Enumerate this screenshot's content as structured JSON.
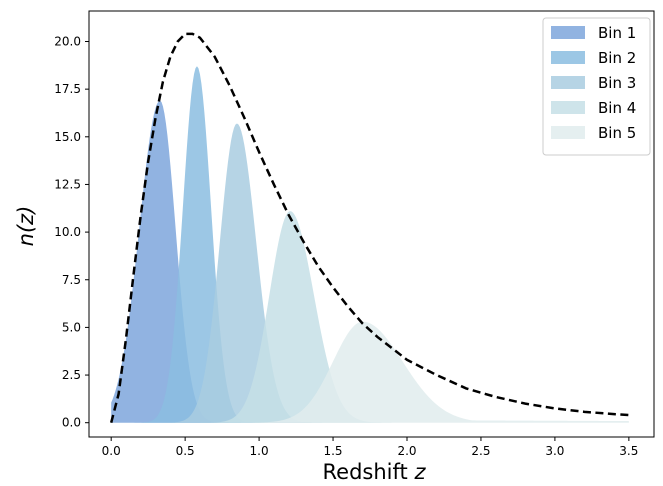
{
  "chart_data": {
    "type": "area",
    "xlabel": "Redshift",
    "xlabel_var": "z",
    "ylabel": "n(z)",
    "xlim": [
      -0.15,
      3.67
    ],
    "ylim": [
      -0.75,
      21.6
    ],
    "x_ticks": [
      0.0,
      0.5,
      1.0,
      1.5,
      2.0,
      2.5,
      3.0,
      3.5
    ],
    "x_tick_labels": [
      "0.0",
      "0.5",
      "1.0",
      "1.5",
      "2.0",
      "2.5",
      "3.0",
      "3.5"
    ],
    "y_ticks": [
      0.0,
      2.5,
      5.0,
      7.5,
      10.0,
      12.5,
      15.0,
      17.5,
      20.0
    ],
    "y_tick_labels": [
      "0.0",
      "2.5",
      "5.0",
      "7.5",
      "10.0",
      "12.5",
      "15.0",
      "17.5",
      "20.0"
    ],
    "grid": false,
    "legend_position": "top-right",
    "total_curve": {
      "style": "dashed",
      "color": "#000000",
      "points": [
        [
          0.0,
          0.0
        ],
        [
          0.05,
          1.5
        ],
        [
          0.1,
          4.4
        ],
        [
          0.15,
          7.7
        ],
        [
          0.2,
          10.9
        ],
        [
          0.25,
          13.7
        ],
        [
          0.3,
          16.0
        ],
        [
          0.35,
          17.9
        ],
        [
          0.4,
          19.2
        ],
        [
          0.45,
          20.0
        ],
        [
          0.5,
          20.4
        ],
        [
          0.55,
          20.4
        ],
        [
          0.6,
          20.2
        ],
        [
          0.7,
          19.2
        ],
        [
          0.8,
          17.7
        ],
        [
          0.9,
          16.0
        ],
        [
          1.0,
          14.2
        ],
        [
          1.1,
          12.5
        ],
        [
          1.2,
          10.9
        ],
        [
          1.3,
          9.5
        ],
        [
          1.4,
          8.2
        ],
        [
          1.5,
          7.1
        ],
        [
          1.6,
          6.1
        ],
        [
          1.7,
          5.2
        ],
        [
          1.8,
          4.5
        ],
        [
          1.9,
          3.9
        ],
        [
          2.0,
          3.3
        ],
        [
          2.2,
          2.5
        ],
        [
          2.4,
          1.8
        ],
        [
          2.6,
          1.35
        ],
        [
          2.8,
          1.0
        ],
        [
          3.0,
          0.75
        ],
        [
          3.2,
          0.57
        ],
        [
          3.4,
          0.45
        ],
        [
          3.5,
          0.4
        ]
      ]
    },
    "series": [
      {
        "name": "Bin 1",
        "color": "#7ea6dc",
        "peak_z": 0.33,
        "peak_n": 16.9,
        "sigma_left": 0.14,
        "sigma_right": 0.105
      },
      {
        "name": "Bin 2",
        "color": "#8bbde0",
        "peak_z": 0.58,
        "peak_n": 18.7,
        "sigma_left": 0.095,
        "sigma_right": 0.095
      },
      {
        "name": "Bin 3",
        "color": "#a9cce0",
        "peak_z": 0.85,
        "peak_n": 15.7,
        "sigma_left": 0.115,
        "sigma_right": 0.13
      },
      {
        "name": "Bin 4",
        "color": "#c5dfe6",
        "peak_z": 1.21,
        "peak_n": 11.1,
        "sigma_left": 0.14,
        "sigma_right": 0.16
      },
      {
        "name": "Bin 5",
        "color": "#e0eced",
        "peak_z": 1.7,
        "peak_n": 5.3,
        "sigma_left": 0.2,
        "sigma_right": 0.27,
        "tail_n": 0.15
      }
    ]
  }
}
